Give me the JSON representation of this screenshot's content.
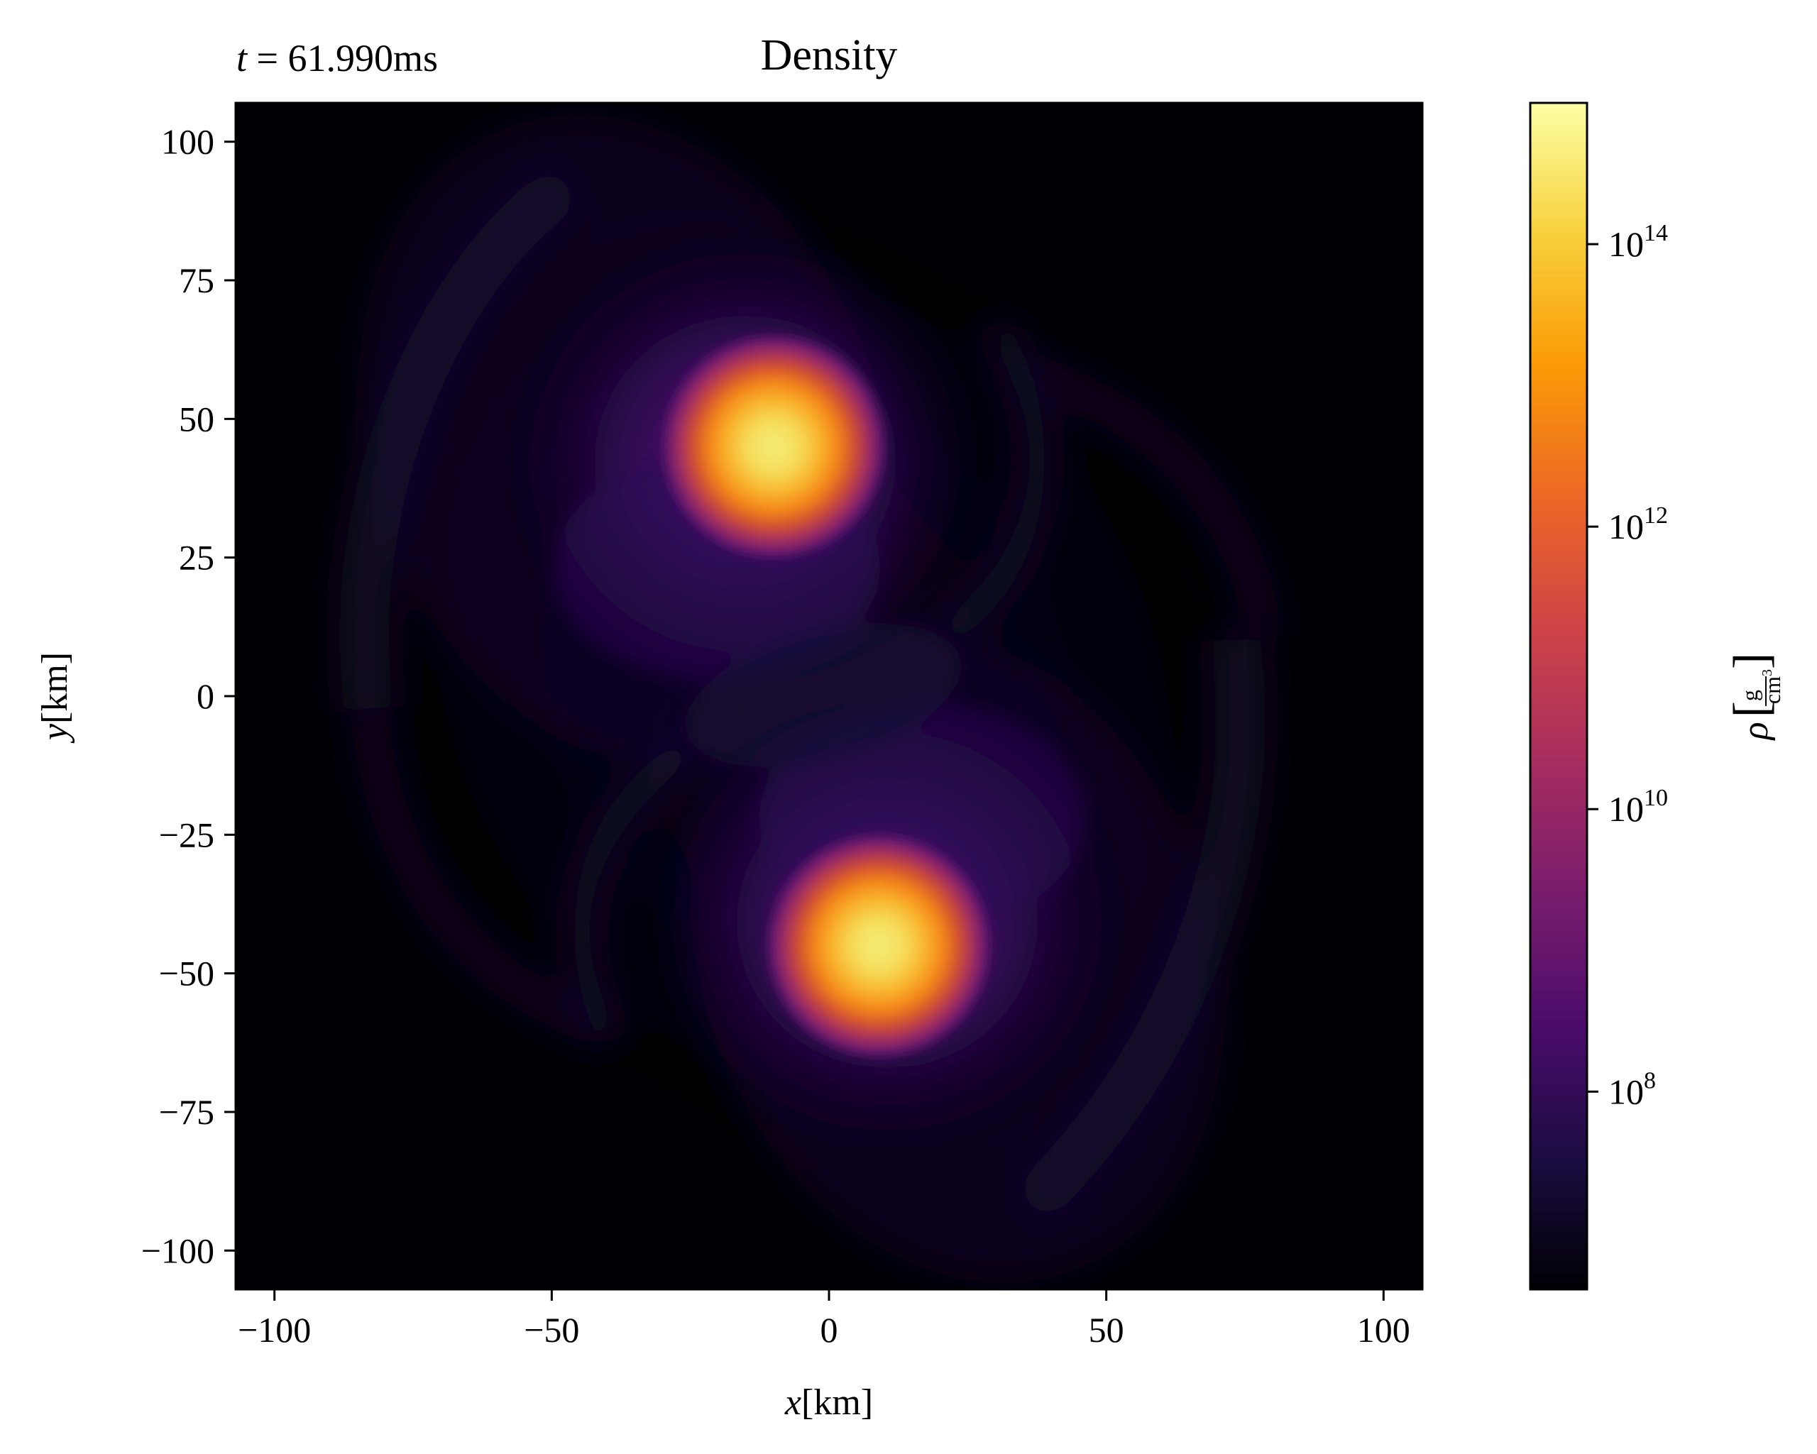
{
  "chart_data": {
    "type": "heatmap",
    "title": "Density",
    "annotation": {
      "time_label": "t",
      "time_equals": " = ",
      "time_value": "61.990ms"
    },
    "xlabel": {
      "symbol": "x",
      "unit": "[km]"
    },
    "ylabel": {
      "symbol": "y",
      "unit": "[km]"
    },
    "xlim": [
      -107,
      107
    ],
    "ylim": [
      -107,
      107
    ],
    "xticks": [
      {
        "value": -100,
        "label": "−100"
      },
      {
        "value": -50,
        "label": "−50"
      },
      {
        "value": 0,
        "label": "0"
      },
      {
        "value": 50,
        "label": "50"
      },
      {
        "value": 100,
        "label": "100"
      }
    ],
    "yticks": [
      {
        "value": 100,
        "label": "100"
      },
      {
        "value": 75,
        "label": "75"
      },
      {
        "value": 50,
        "label": "50"
      },
      {
        "value": 25,
        "label": "25"
      },
      {
        "value": 0,
        "label": "0"
      },
      {
        "value": -25,
        "label": "−25"
      },
      {
        "value": -50,
        "label": "−50"
      },
      {
        "value": -75,
        "label": "−75"
      },
      {
        "value": -100,
        "label": "−100"
      }
    ],
    "colorbar": {
      "scale": "log",
      "colormap": "inferno",
      "log10_range": [
        6.6,
        15.0
      ],
      "label": {
        "symbol": "ρ",
        "numerator": "g",
        "denominator": "cm",
        "denominator_exp": "3"
      },
      "ticks": [
        {
          "log10": 8,
          "base": "10",
          "exp": "8"
        },
        {
          "log10": 10,
          "base": "10",
          "exp": "10"
        },
        {
          "log10": 12,
          "base": "10",
          "exp": "12"
        },
        {
          "log10": 14,
          "base": "10",
          "exp": "14"
        }
      ],
      "stops": [
        "#000004",
        "#1b0c41",
        "#4a0c6b",
        "#781c6d",
        "#a52c60",
        "#cf4446",
        "#ed6925",
        "#fb9b06",
        "#f7d13d",
        "#fcffa4"
      ]
    },
    "features": [
      {
        "kind": "core",
        "x": -10,
        "y": 45,
        "log10_peak": 14.9
      },
      {
        "kind": "core",
        "x": 9,
        "y": -45,
        "log10_peak": 14.9
      }
    ]
  }
}
